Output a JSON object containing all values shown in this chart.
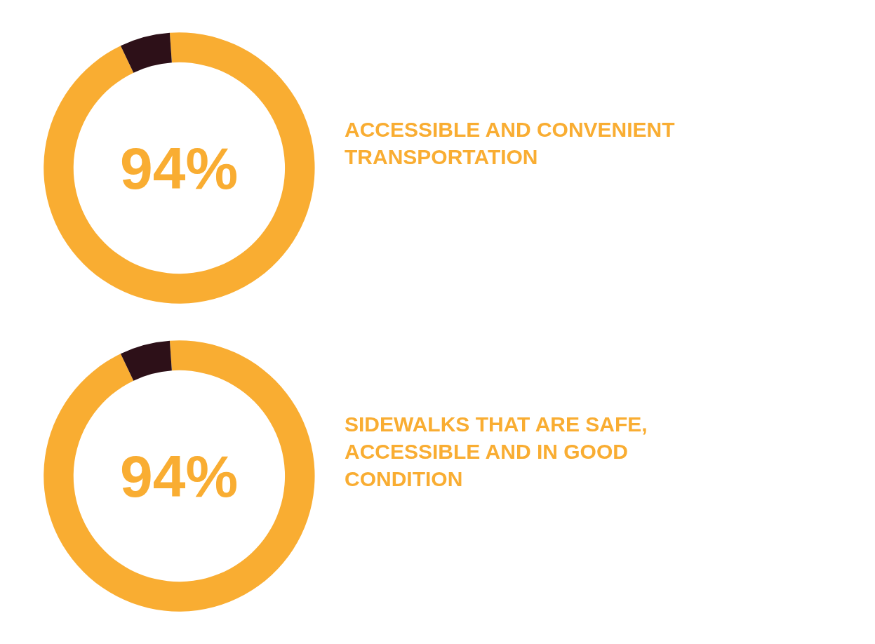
{
  "chart_data": [
    {
      "type": "donut",
      "title": "ACCESSIBLE AND CONVENIENT TRANSPORTATION",
      "categories": [
        null,
        null
      ],
      "values": [
        94,
        6
      ],
      "colors": [
        "#f9ad32",
        "#2d1018"
      ],
      "value_labels": [
        "94%",
        null
      ]
    },
    {
      "type": "donut",
      "title": "SIDEWALKS THAT ARE SAFE, ACCESSIBLE AND IN GOOD CONDITION",
      "categories": [
        null,
        null
      ],
      "values": [
        94,
        6
      ],
      "colors": [
        "#f9ad32",
        "#2d1018"
      ],
      "value_labels": [
        "94%",
        null
      ]
    }
  ]
}
